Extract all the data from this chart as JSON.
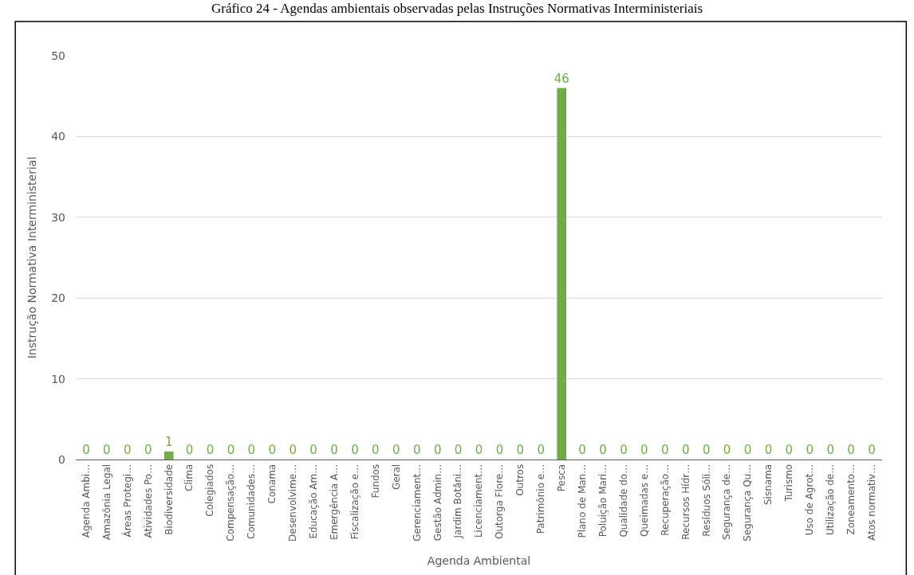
{
  "chart_data": {
    "type": "bar",
    "title": "Gráfico 24 - Agendas ambientais observadas pelas Instruções Normativas Interministeriais",
    "xlabel": "Agenda Ambiental",
    "ylabel": "Instrução Normativa Interministerial",
    "categories": [
      "Agenda Ambi…",
      "Amazônia Legal",
      "Áreas Protegi…",
      "Atividades Po…",
      "Biodiversidade",
      "Clima",
      "Colegiados",
      "Compensação…",
      "Comunidades…",
      "Conama",
      "Desenvolvime…",
      "Educação Am…",
      "Emergência A…",
      "Fiscalização e…",
      "Fundos",
      "Geral",
      "Gerenciament…",
      "Gestão Admin…",
      "Jardim Botâni…",
      "Licenciament…",
      "Outorga Flore…",
      "Outros",
      "Patrimônio e…",
      "Pesca",
      "Plano de Man…",
      "Poluição Mari…",
      "Qualidade do…",
      "Queimadas e…",
      "Recuperação…",
      "Recursos Hídr…",
      "Resíduos Sóli…",
      "Segurança de…",
      "Segurança Qu…",
      "Sisnama",
      "Turismo",
      "Uso de Agrot…",
      "Utilização de…",
      "Zoneamento…",
      "Atos normativ…"
    ],
    "values": [
      0,
      0,
      0,
      0,
      1,
      0,
      0,
      0,
      0,
      0,
      0,
      0,
      0,
      0,
      0,
      0,
      0,
      0,
      0,
      0,
      0,
      0,
      0,
      46,
      0,
      0,
      0,
      0,
      0,
      0,
      0,
      0,
      0,
      0,
      0,
      0,
      0,
      0,
      0
    ],
    "color": "#70ad47",
    "data_labels": true,
    "grid": "y",
    "ylim": [
      0,
      50
    ],
    "yticks": [
      0,
      10,
      20,
      30,
      40,
      50
    ]
  }
}
